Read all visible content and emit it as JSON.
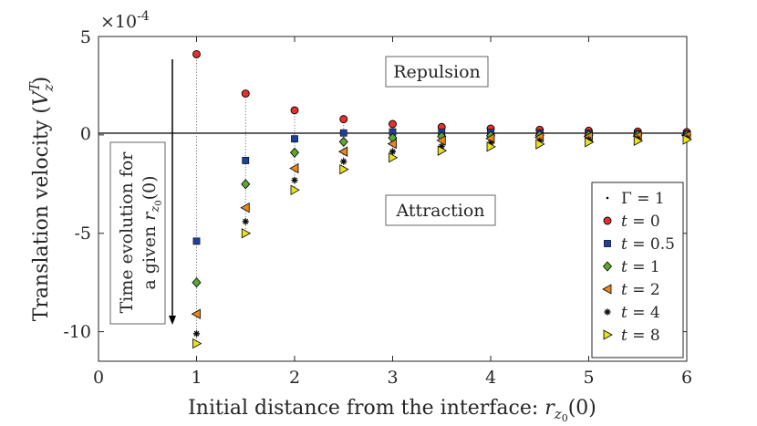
{
  "chart_data": {
    "type": "scatter",
    "title": "",
    "xlabel": "Initial distance from the interface: r_{z0}(0)",
    "xlabel_main": "Initial distance from the interface: ",
    "xlabel_sym": "r",
    "xlabel_sub": "z",
    "xlabel_subsub": "0",
    "xlabel_tail": "(0)",
    "ylabel": "Translation velocity (V_z^T)",
    "ylabel_main": "Translation velocity (",
    "ylabel_sym": "V",
    "ylabel_sup": "T",
    "ylabel_sub": "z",
    "ylabel_tail": ")",
    "exponent_prefix": "×10",
    "exponent": "-4",
    "xlim": [
      0,
      6
    ],
    "ylim": [
      -11.5,
      5
    ],
    "xticks": [
      0,
      1,
      2,
      3,
      4,
      5,
      6
    ],
    "xtick_labels": [
      "0",
      "1",
      "2",
      "3",
      "4",
      "5",
      "6"
    ],
    "yticks": [
      5,
      0,
      -5,
      -10
    ],
    "ytick_labels": [
      "5",
      "0",
      "-5",
      "-10"
    ],
    "x": [
      1,
      1.5,
      2,
      2.5,
      3,
      3.5,
      4,
      4.5,
      5,
      5.5,
      6
    ],
    "series": [
      {
        "name": "t = 0",
        "t": "0",
        "marker": "circle",
        "color": "#e8302a",
        "values": [
          4.1,
          2.1,
          1.25,
          0.8,
          0.55,
          0.4,
          0.32,
          0.26,
          0.21,
          0.17,
          0.14
        ]
      },
      {
        "name": "t = 0.5",
        "t": "0.5",
        "marker": "square",
        "color": "#1f3f9e",
        "values": [
          -5.4,
          -1.3,
          -0.2,
          0.1,
          0.15,
          0.14,
          0.12,
          0.1,
          0.08,
          0.06,
          0.05
        ]
      },
      {
        "name": "t = 1",
        "t": "1",
        "marker": "diamond",
        "color": "#5ea832",
        "values": [
          -7.5,
          -2.5,
          -0.9,
          -0.35,
          -0.15,
          -0.08,
          -0.04,
          -0.02,
          -0.01,
          0.0,
          0.0
        ]
      },
      {
        "name": "t = 2",
        "t": "2",
        "marker": "triangle-left",
        "color": "#e8871e",
        "values": [
          -9.1,
          -3.7,
          -1.7,
          -0.85,
          -0.45,
          -0.28,
          -0.18,
          -0.12,
          -0.08,
          -0.06,
          -0.04
        ]
      },
      {
        "name": "t = 4",
        "t": "4",
        "marker": "star",
        "color": "#111111",
        "values": [
          -10.1,
          -4.4,
          -2.3,
          -1.35,
          -0.85,
          -0.58,
          -0.42,
          -0.31,
          -0.24,
          -0.19,
          -0.15
        ]
      },
      {
        "name": "t = 8",
        "t": "8",
        "marker": "triangle-right",
        "color": "#e8e020",
        "values": [
          -10.6,
          -5.0,
          -2.8,
          -1.75,
          -1.15,
          -0.8,
          -0.6,
          -0.47,
          -0.37,
          -0.3,
          -0.24
        ]
      }
    ],
    "legend_first": {
      "name": "Γ = 1",
      "sym": "Γ",
      "eq": " = 1",
      "marker": "dot"
    },
    "legend_t_symbol": "t",
    "legend_position": "bottom-right",
    "annotations": {
      "repulsion": "Repulsion",
      "attraction": "Attraction",
      "time_evolution_line1": "Time evolution for",
      "time_evolution_line2_prefix": "a given ",
      "time_evolution_sym": "r",
      "time_evolution_sub": "z",
      "time_evolution_subsub": "0",
      "time_evolution_tail": "(0)"
    }
  }
}
